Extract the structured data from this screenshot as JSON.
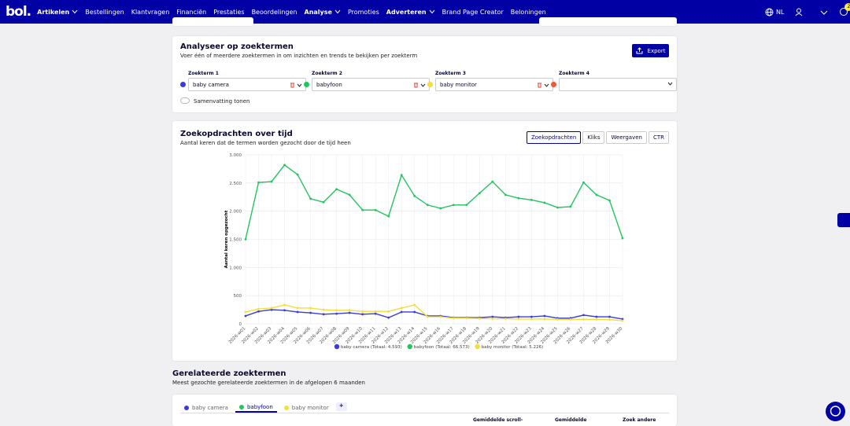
{
  "nav": {
    "logo": "bol.",
    "items": [
      {
        "label": "Artikelen",
        "dropdown": true
      },
      {
        "label": "Bestellingen"
      },
      {
        "label": "Klantvragen"
      },
      {
        "label": "Financiën"
      },
      {
        "label": "Prestaties"
      },
      {
        "label": "Beoordelingen"
      },
      {
        "label": "Analyse",
        "dropdown": true
      },
      {
        "label": "Promoties"
      },
      {
        "label": "Adverteren",
        "dropdown": true
      },
      {
        "label": "Brand Page Creator"
      },
      {
        "label": "Beloningen"
      }
    ],
    "language": "NL",
    "notification_count": "2"
  },
  "search_card": {
    "title": "Analyseer op zoektermen",
    "subtitle": "Voer één of meerdere zoektermen in om inzichten en trends te bekijken per zoekterm",
    "export": "Export",
    "terms": [
      {
        "label": "Zoekterm 1",
        "value": "baby camera",
        "color": "#3b3bd9"
      },
      {
        "label": "Zoekterm 2",
        "value": "babyfoon",
        "color": "#22c55e"
      },
      {
        "label": "Zoekterm 3",
        "value": "baby monitor",
        "color": "#f5dd3b"
      },
      {
        "label": "Zoekterm 4",
        "color": "#f0583a"
      }
    ],
    "summary_toggle": "Samenvatting tonen"
  },
  "chart_card": {
    "title": "Zoekopdrachten over tijd",
    "subtitle": "Aantal keren dat de termen worden gezocht door de tijd heen",
    "tabs": [
      "Zoekopdrachten",
      "Kliks",
      "Weergaven",
      "CTR"
    ],
    "active_tab": "Zoekopdrachten"
  },
  "chart_data": {
    "type": "line",
    "y_label": "Aantal keren opgezocht",
    "categories": [
      "2026-w01",
      "2026-w02",
      "2026-w03",
      "2026-w04",
      "2026-w05",
      "2026-w06",
      "2026-w07",
      "2026-w08",
      "2026-w09",
      "2026-w10",
      "2026-w11",
      "2026-w12",
      "2026-w13",
      "2026-w14",
      "2026-w15",
      "2026-w16",
      "2026-w17",
      "2026-w18",
      "2026-w19",
      "2026-w20",
      "2026-w21",
      "2026-w22",
      "2026-w23",
      "2026-w24",
      "2026-w25",
      "2026-w26",
      "2026-w27",
      "2026-w28",
      "2026-w29",
      "2026-w30"
    ],
    "series": [
      {
        "name": "baby camera (Totaal: 4.593)",
        "color": "#3b3bd9",
        "values": [
          140,
          220,
          250,
          240,
          210,
          195,
          170,
          180,
          195,
          170,
          180,
          110,
          210,
          210,
          140,
          140,
          110,
          110,
          110,
          125,
          110,
          125,
          125,
          140,
          100,
          100,
          155,
          125,
          125,
          85
        ]
      },
      {
        "name": "babyfoon (Totaal: 66.573)",
        "color": "#22c55e",
        "values": [
          1500,
          2510,
          2525,
          2820,
          2650,
          2220,
          2160,
          2390,
          2290,
          2020,
          2020,
          1910,
          2640,
          2270,
          2110,
          2050,
          2110,
          2110,
          2320,
          2525,
          2290,
          2230,
          2200,
          2150,
          2065,
          2080,
          2510,
          2290,
          2190,
          1520
        ]
      },
      {
        "name": "baby monitor (Totaal: 5.226)",
        "color": "#f5dd3b",
        "values": [
          210,
          265,
          280,
          335,
          280,
          280,
          250,
          240,
          240,
          220,
          220,
          220,
          280,
          335,
          125,
          125,
          100,
          100,
          95,
          90,
          90,
          85,
          85,
          85,
          80,
          80,
          80,
          80,
          75,
          55
        ]
      }
    ],
    "ylim": [
      0,
      3000
    ],
    "yticks": [
      0,
      {
        "value": 500,
        "label": "500"
      },
      {
        "value": 1000,
        "label": "1.000"
      },
      {
        "value": 1500,
        "label": "1.500"
      },
      {
        "value": 2000,
        "label": "2.000"
      },
      {
        "value": 2500,
        "label": "2.500"
      },
      {
        "value": 3000,
        "label": "3.000"
      }
    ],
    "grid": true
  },
  "related": {
    "title": "Gerelateerde zoektermen",
    "subtitle": "Meest gezochte gerelateerde zoektermen in de afgelopen 6 maanden",
    "tabs": [
      {
        "label": "baby camera",
        "color": "#3b3bd9"
      },
      {
        "label": "babyfoon",
        "color": "#22c55e"
      },
      {
        "label": "baby monitor",
        "color": "#f5dd3b"
      }
    ],
    "active_tab": "babyfoon",
    "add": "+",
    "columns": [
      "Gemiddelde scroll-",
      "Gemiddelde",
      "Zoek andere"
    ]
  }
}
